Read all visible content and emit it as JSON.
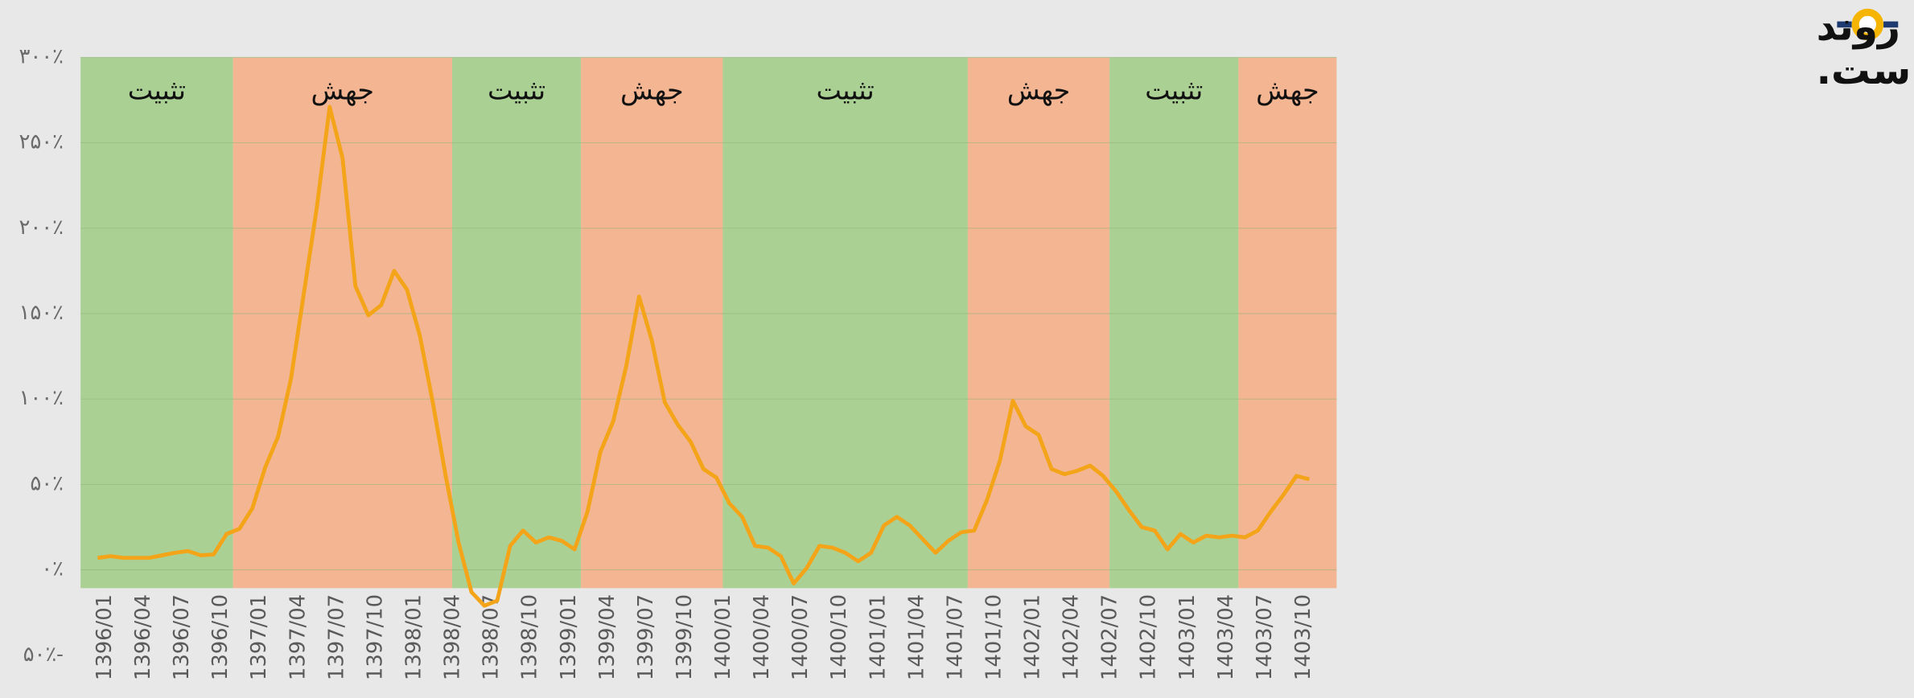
{
  "chart_data": {
    "type": "line",
    "title_lines": [
      "شدت جهش ها روند",
      "کاهشی داشته است."
    ],
    "categories": [
      "1396/01",
      null,
      null,
      "1396/04",
      null,
      null,
      "1396/07",
      null,
      null,
      "1396/10",
      null,
      null,
      "1397/01",
      null,
      null,
      "1397/04",
      null,
      null,
      "1397/07",
      null,
      null,
      "1397/10",
      null,
      null,
      "1398/01",
      null,
      null,
      "1398/04",
      null,
      null,
      "1398/07",
      null,
      null,
      "1398/10",
      null,
      null,
      "1399/01",
      null,
      null,
      "1399/04",
      null,
      null,
      "1399/07",
      null,
      null,
      "1399/10",
      null,
      null,
      "1400/01",
      null,
      null,
      "1400/04",
      null,
      null,
      "1400/07",
      null,
      null,
      "1400/10",
      null,
      null,
      "1401/01",
      null,
      null,
      "1401/04",
      null,
      null,
      "1401/07",
      null,
      null,
      "1401/10",
      null,
      null,
      "1402/01",
      null,
      null,
      "1402/04",
      null,
      null,
      "1402/07",
      null,
      null,
      "1402/10",
      null,
      null,
      "1403/01",
      null,
      null,
      "1403/04",
      null,
      null,
      "1403/07",
      null,
      null,
      "1403/10",
      null
    ],
    "series": [
      {
        "color": "#f4a418",
        "values": [
          7,
          8,
          7,
          7,
          7,
          8.5,
          10,
          11,
          8.5,
          9,
          21,
          24,
          36,
          60,
          78,
          112,
          162,
          212,
          271,
          241,
          166,
          149,
          155,
          175,
          164,
          137,
          98,
          55,
          16,
          -13,
          -21,
          -18,
          14,
          23,
          16,
          19,
          17,
          12,
          34,
          69,
          87,
          119,
          160,
          134,
          98,
          85,
          75,
          59,
          54,
          39,
          31,
          14,
          13,
          8,
          -8,
          1,
          14,
          13,
          10,
          5,
          10,
          26,
          31,
          26,
          18,
          10,
          17,
          22,
          23,
          41,
          64,
          99,
          84,
          79,
          59,
          56,
          58,
          61,
          55,
          46,
          35,
          25,
          23,
          12,
          21,
          16,
          20,
          19,
          20,
          19,
          23,
          34,
          44,
          55,
          53
        ]
      }
    ],
    "bands": [
      {
        "label": "تثبیت",
        "start": 0,
        "end": 10,
        "color": "#9fcc84"
      },
      {
        "label": "جهش",
        "start": 11,
        "end": 27,
        "color": "#f4ab82"
      },
      {
        "label": "تثبیت",
        "start": 28,
        "end": 37,
        "color": "#9fcc84"
      },
      {
        "label": "جهش",
        "start": 38,
        "end": 48,
        "color": "#f4ab82"
      },
      {
        "label": "تثبیت",
        "start": 49,
        "end": 67,
        "color": "#9fcc84"
      },
      {
        "label": "جهش",
        "start": 68,
        "end": 78,
        "color": "#f4ab82"
      },
      {
        "label": "تثبیت",
        "start": 79,
        "end": 88,
        "color": "#9fcc84"
      },
      {
        "label": "جهش",
        "start": 89,
        "end": 94,
        "color": "#f4ab82"
      }
    ],
    "ylim": [
      -50,
      300
    ],
    "yticks": [
      {
        "value": -50,
        "label": "۵۰٪-"
      },
      {
        "value": 0,
        "label": "۰٪"
      },
      {
        "value": 50,
        "label": "۵۰٪"
      },
      {
        "value": 100,
        "label": "۱۰۰٪"
      },
      {
        "value": 150,
        "label": "۱۵۰٪"
      },
      {
        "value": 200,
        "label": "۲۰۰٪"
      },
      {
        "value": 250,
        "label": "۲۵۰٪"
      },
      {
        "value": 300,
        "label": "۳۰۰٪"
      }
    ],
    "grid": true
  }
}
